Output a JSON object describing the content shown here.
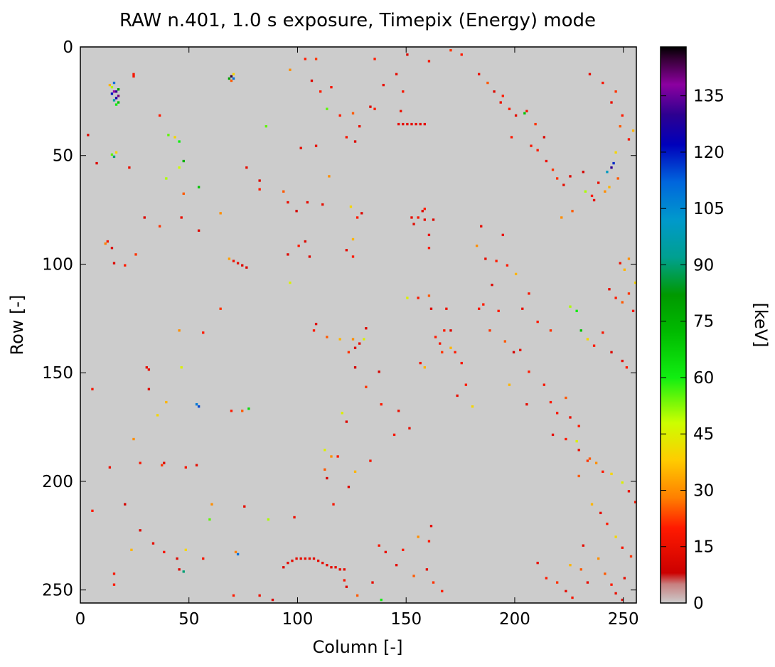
{
  "chart_data": {
    "type": "heatmap",
    "title": "RAW n.401, 1.0 s exposure, Timepix (Energy) mode",
    "xlabel": "Column [-]",
    "ylabel": "Row [-]",
    "xlim": [
      0,
      256
    ],
    "ylim": [
      256,
      0
    ],
    "x_ticks": [
      0,
      50,
      100,
      150,
      200,
      250
    ],
    "y_ticks": [
      0,
      50,
      100,
      150,
      200,
      250
    ],
    "grid": false,
    "colorbar": {
      "label": "[keV]",
      "range": [
        0,
        148
      ],
      "ticks": [
        0,
        15,
        30,
        45,
        60,
        75,
        90,
        105,
        120,
        135
      ],
      "colormap": "nipy_spectral with grey floor"
    },
    "background_value": 0,
    "background_color": "#cccccc",
    "hits": [
      [
        14,
        18,
        50
      ],
      [
        15,
        16,
        110
      ],
      [
        16,
        20,
        130
      ],
      [
        17,
        22,
        140
      ],
      [
        15,
        24,
        95
      ],
      [
        16,
        26,
        60
      ],
      [
        14,
        21,
        120
      ],
      [
        13,
        17,
        35
      ],
      [
        17,
        19,
        80
      ],
      [
        16,
        23,
        125
      ],
      [
        15,
        20,
        138
      ],
      [
        17,
        25,
        70
      ],
      [
        69,
        13,
        145
      ],
      [
        70,
        14,
        110
      ],
      [
        68,
        14,
        80
      ],
      [
        70,
        12,
        40
      ],
      [
        69,
        15,
        25
      ],
      [
        24,
        12,
        18
      ],
      [
        24,
        13,
        18
      ],
      [
        3,
        40,
        12
      ],
      [
        14,
        49,
        55
      ],
      [
        15,
        50,
        90
      ],
      [
        16,
        48,
        40
      ],
      [
        7,
        53,
        12
      ],
      [
        22,
        55,
        15
      ],
      [
        36,
        31,
        20
      ],
      [
        40,
        40,
        55
      ],
      [
        43,
        41,
        40
      ],
      [
        45,
        43,
        60
      ],
      [
        47,
        52,
        75
      ],
      [
        45,
        55,
        48
      ],
      [
        39,
        60,
        50
      ],
      [
        47,
        67,
        25
      ],
      [
        54,
        64,
        70
      ],
      [
        64,
        76,
        30
      ],
      [
        36,
        82,
        22
      ],
      [
        29,
        78,
        12
      ],
      [
        46,
        78,
        15
      ],
      [
        54,
        84,
        12
      ],
      [
        12,
        89,
        18
      ],
      [
        11,
        90,
        28
      ],
      [
        14,
        92,
        12
      ],
      [
        15,
        99,
        12
      ],
      [
        20,
        100,
        20
      ],
      [
        25,
        95,
        22
      ],
      [
        68,
        97,
        32
      ],
      [
        70,
        98,
        16
      ],
      [
        72,
        99,
        14
      ],
      [
        74,
        100,
        12
      ],
      [
        76,
        101,
        12
      ],
      [
        64,
        120,
        22
      ],
      [
        45,
        130,
        30
      ],
      [
        56,
        131,
        20
      ],
      [
        30,
        147,
        14
      ],
      [
        31,
        148,
        14
      ],
      [
        46,
        147,
        45
      ],
      [
        5,
        157,
        18
      ],
      [
        31,
        157,
        12
      ],
      [
        53,
        164,
        108
      ],
      [
        54,
        165,
        115
      ],
      [
        69,
        167,
        20
      ],
      [
        74,
        167,
        25
      ],
      [
        77,
        166,
        65
      ],
      [
        39,
        163,
        35
      ],
      [
        35,
        169,
        40
      ],
      [
        24,
        180,
        30
      ],
      [
        38,
        191,
        12
      ],
      [
        27,
        191,
        18
      ],
      [
        37,
        192,
        22
      ],
      [
        13,
        193,
        15
      ],
      [
        48,
        193,
        18
      ],
      [
        53,
        192,
        14
      ],
      [
        20,
        210,
        10
      ],
      [
        5,
        213,
        20
      ],
      [
        60,
        210,
        30
      ],
      [
        59,
        217,
        55
      ],
      [
        75,
        211,
        14
      ],
      [
        86,
        217,
        50
      ],
      [
        98,
        216,
        16
      ],
      [
        27,
        222,
        12
      ],
      [
        33,
        228,
        14
      ],
      [
        23,
        231,
        35
      ],
      [
        38,
        232,
        18
      ],
      [
        48,
        231,
        40
      ],
      [
        56,
        235,
        18
      ],
      [
        71,
        232,
        28
      ],
      [
        72,
        233,
        110
      ],
      [
        44,
        235,
        12
      ],
      [
        15,
        242,
        18
      ],
      [
        45,
        240,
        12
      ],
      [
        47,
        241,
        90
      ],
      [
        15,
        247,
        20
      ],
      [
        82,
        252,
        16
      ],
      [
        70,
        252,
        20
      ],
      [
        88,
        254,
        12
      ],
      [
        93,
        239,
        12
      ],
      [
        95,
        237,
        14
      ],
      [
        97,
        236,
        14
      ],
      [
        99,
        235,
        14
      ],
      [
        101,
        235,
        14
      ],
      [
        103,
        235,
        14
      ],
      [
        105,
        235,
        14
      ],
      [
        107,
        235,
        14
      ],
      [
        109,
        236,
        14
      ],
      [
        111,
        237,
        14
      ],
      [
        113,
        238,
        14
      ],
      [
        115,
        239,
        14
      ],
      [
        117,
        239,
        14
      ],
      [
        119,
        240,
        14
      ],
      [
        121,
        240,
        14
      ],
      [
        95,
        71,
        15
      ],
      [
        82,
        65,
        20
      ],
      [
        93,
        66,
        25
      ],
      [
        85,
        36,
        55
      ],
      [
        104,
        71,
        14
      ],
      [
        111,
        72,
        14
      ],
      [
        99,
        75,
        10
      ],
      [
        95,
        95,
        12
      ],
      [
        100,
        91,
        20
      ],
      [
        103,
        89,
        12
      ],
      [
        105,
        96,
        12
      ],
      [
        96,
        108,
        45
      ],
      [
        76,
        55,
        14
      ],
      [
        82,
        61,
        12
      ],
      [
        103,
        5,
        20
      ],
      [
        108,
        5,
        22
      ],
      [
        96,
        10,
        30
      ],
      [
        106,
        15,
        12
      ],
      [
        110,
        20,
        20
      ],
      [
        115,
        18,
        18
      ],
      [
        108,
        45,
        15
      ],
      [
        101,
        46,
        14
      ],
      [
        114,
        59,
        30
      ],
      [
        122,
        41,
        18
      ],
      [
        126,
        43,
        12
      ],
      [
        113,
        28,
        55
      ],
      [
        119,
        31,
        20
      ],
      [
        125,
        30,
        25
      ],
      [
        128,
        36,
        15
      ],
      [
        133,
        27,
        12
      ],
      [
        135,
        28,
        20
      ],
      [
        124,
        73,
        40
      ],
      [
        127,
        78,
        20
      ],
      [
        129,
        76,
        12
      ],
      [
        125,
        88,
        35
      ],
      [
        122,
        93,
        14
      ],
      [
        125,
        96,
        20
      ],
      [
        107,
        130,
        20
      ],
      [
        108,
        127,
        12
      ],
      [
        113,
        133,
        25
      ],
      [
        119,
        134,
        35
      ],
      [
        125,
        134,
        30
      ],
      [
        126,
        138,
        12
      ],
      [
        128,
        136,
        14
      ],
      [
        123,
        140,
        22
      ],
      [
        126,
        147,
        10
      ],
      [
        130,
        134,
        45
      ],
      [
        131,
        129,
        12
      ],
      [
        137,
        149,
        10
      ],
      [
        131,
        156,
        22
      ],
      [
        138,
        164,
        20
      ],
      [
        146,
        167,
        15
      ],
      [
        144,
        178,
        18
      ],
      [
        151,
        175,
        14
      ],
      [
        120,
        168,
        45
      ],
      [
        122,
        172,
        12
      ],
      [
        112,
        185,
        45
      ],
      [
        115,
        188,
        30
      ],
      [
        133,
        190,
        18
      ],
      [
        112,
        194,
        25
      ],
      [
        118,
        188,
        20
      ],
      [
        126,
        195,
        35
      ],
      [
        123,
        202,
        12
      ],
      [
        113,
        198,
        10
      ],
      [
        116,
        210,
        18
      ],
      [
        137,
        229,
        18
      ],
      [
        155,
        225,
        30
      ],
      [
        160,
        227,
        20
      ],
      [
        161,
        220,
        14
      ],
      [
        140,
        232,
        15
      ],
      [
        145,
        238,
        14
      ],
      [
        148,
        231,
        20
      ],
      [
        153,
        243,
        25
      ],
      [
        159,
        240,
        14
      ],
      [
        162,
        246,
        22
      ],
      [
        166,
        250,
        20
      ],
      [
        122,
        248,
        12
      ],
      [
        127,
        252,
        25
      ],
      [
        134,
        246,
        14
      ],
      [
        138,
        254,
        60
      ],
      [
        121,
        245,
        18
      ],
      [
        135,
        5,
        20
      ],
      [
        139,
        17,
        15
      ],
      [
        145,
        12,
        14
      ],
      [
        150,
        3,
        12
      ],
      [
        148,
        20,
        18
      ],
      [
        147,
        29,
        16
      ],
      [
        146,
        35,
        14
      ],
      [
        148,
        35,
        14
      ],
      [
        150,
        35,
        14
      ],
      [
        152,
        35,
        14
      ],
      [
        154,
        35,
        14
      ],
      [
        156,
        35,
        14
      ],
      [
        158,
        35,
        14
      ],
      [
        152,
        78,
        14
      ],
      [
        155,
        78,
        18
      ],
      [
        158,
        74,
        20
      ],
      [
        160,
        86,
        15
      ],
      [
        157,
        75,
        12
      ],
      [
        153,
        81,
        13
      ],
      [
        162,
        79,
        12
      ],
      [
        158,
        79,
        14
      ],
      [
        160,
        92,
        20
      ],
      [
        150,
        115,
        45
      ],
      [
        155,
        115,
        18
      ],
      [
        160,
        114,
        25
      ],
      [
        161,
        120,
        12
      ],
      [
        163,
        133,
        20
      ],
      [
        165,
        136,
        18
      ],
      [
        166,
        140,
        22
      ],
      [
        156,
        145,
        18
      ],
      [
        158,
        147,
        35
      ],
      [
        168,
        120,
        16
      ],
      [
        170,
        130,
        12
      ],
      [
        172,
        140,
        20
      ],
      [
        175,
        145,
        18
      ],
      [
        177,
        155,
        20
      ],
      [
        180,
        165,
        40
      ],
      [
        173,
        160,
        15
      ],
      [
        167,
        130,
        20
      ],
      [
        170,
        138,
        35
      ],
      [
        185,
        118,
        20
      ],
      [
        189,
        109,
        12
      ],
      [
        186,
        97,
        14
      ],
      [
        183,
        120,
        18
      ],
      [
        188,
        130,
        22
      ],
      [
        192,
        121,
        20
      ],
      [
        195,
        135,
        25
      ],
      [
        199,
        140,
        10
      ],
      [
        197,
        155,
        35
      ],
      [
        160,
        6,
        18
      ],
      [
        170,
        1,
        22
      ],
      [
        175,
        3,
        20
      ],
      [
        183,
        12,
        15
      ],
      [
        187,
        16,
        25
      ],
      [
        190,
        20,
        12
      ],
      [
        194,
        22,
        20
      ],
      [
        193,
        25,
        16
      ],
      [
        197,
        28,
        20
      ],
      [
        200,
        31,
        14
      ],
      [
        205,
        29,
        18
      ],
      [
        198,
        41,
        20
      ],
      [
        204,
        30,
        70
      ],
      [
        209,
        35,
        22
      ],
      [
        213,
        41,
        12
      ],
      [
        207,
        45,
        18
      ],
      [
        210,
        47,
        20
      ],
      [
        214,
        52,
        16
      ],
      [
        217,
        56,
        22
      ],
      [
        184,
        82,
        14
      ],
      [
        182,
        91,
        30
      ],
      [
        191,
        98,
        20
      ],
      [
        194,
        86,
        15
      ],
      [
        196,
        100,
        20
      ],
      [
        200,
        104,
        35
      ],
      [
        206,
        113,
        18
      ],
      [
        203,
        120,
        15
      ],
      [
        210,
        126,
        20
      ],
      [
        216,
        130,
        22
      ],
      [
        202,
        139,
        15
      ],
      [
        206,
        149,
        20
      ],
      [
        213,
        155,
        18
      ],
      [
        216,
        163,
        20
      ],
      [
        205,
        164,
        14
      ],
      [
        219,
        168,
        18
      ],
      [
        223,
        161,
        25
      ],
      [
        225,
        170,
        15
      ],
      [
        229,
        174,
        20
      ],
      [
        228,
        181,
        45
      ],
      [
        234,
        189,
        25
      ],
      [
        237,
        191,
        30
      ],
      [
        240,
        195,
        20
      ],
      [
        244,
        196,
        40
      ],
      [
        249,
        200,
        45
      ],
      [
        252,
        204,
        15
      ],
      [
        255,
        209,
        18
      ],
      [
        217,
        178,
        14
      ],
      [
        223,
        180,
        20
      ],
      [
        229,
        185,
        15
      ],
      [
        233,
        190,
        22
      ],
      [
        229,
        197,
        25
      ],
      [
        235,
        210,
        35
      ],
      [
        239,
        214,
        14
      ],
      [
        242,
        219,
        20
      ],
      [
        246,
        225,
        40
      ],
      [
        249,
        230,
        18
      ],
      [
        253,
        234,
        22
      ],
      [
        241,
        242,
        25
      ],
      [
        244,
        247,
        20
      ],
      [
        246,
        251,
        15
      ],
      [
        249,
        254,
        12
      ],
      [
        250,
        244,
        14
      ],
      [
        238,
        235,
        30
      ],
      [
        231,
        229,
        14
      ],
      [
        210,
        237,
        15
      ],
      [
        214,
        244,
        20
      ],
      [
        219,
        246,
        22
      ],
      [
        223,
        250,
        14
      ],
      [
        226,
        253,
        18
      ],
      [
        230,
        240,
        25
      ],
      [
        225,
        238,
        35
      ],
      [
        233,
        246,
        15
      ],
      [
        234,
        12,
        14
      ],
      [
        240,
        16,
        18
      ],
      [
        246,
        20,
        22
      ],
      [
        244,
        25,
        15
      ],
      [
        249,
        31,
        20
      ],
      [
        248,
        36,
        25
      ],
      [
        254,
        38,
        35
      ],
      [
        252,
        42,
        18
      ],
      [
        246,
        48,
        40
      ],
      [
        245,
        53,
        118
      ],
      [
        244,
        55,
        130
      ],
      [
        242,
        57,
        100
      ],
      [
        247,
        60,
        25
      ],
      [
        243,
        64,
        35
      ],
      [
        235,
        68,
        20
      ],
      [
        226,
        75,
        25
      ],
      [
        221,
        78,
        30
      ],
      [
        219,
        60,
        22
      ],
      [
        222,
        63,
        14
      ],
      [
        225,
        59,
        12
      ],
      [
        231,
        57,
        10
      ],
      [
        238,
        62,
        15
      ],
      [
        241,
        66,
        30
      ],
      [
        232,
        66,
        50
      ],
      [
        236,
        70,
        15
      ],
      [
        225,
        119,
        50
      ],
      [
        228,
        121,
        60
      ],
      [
        230,
        130,
        70
      ],
      [
        233,
        134,
        40
      ],
      [
        236,
        137,
        20
      ],
      [
        240,
        131,
        18
      ],
      [
        244,
        140,
        12
      ],
      [
        249,
        144,
        14
      ],
      [
        251,
        147,
        20
      ],
      [
        243,
        111,
        14
      ],
      [
        246,
        115,
        20
      ],
      [
        249,
        117,
        25
      ],
      [
        252,
        113,
        22
      ],
      [
        254,
        121,
        18
      ],
      [
        248,
        99,
        16
      ],
      [
        252,
        97,
        30
      ],
      [
        250,
        102,
        35
      ],
      [
        255,
        108,
        40
      ]
    ]
  }
}
